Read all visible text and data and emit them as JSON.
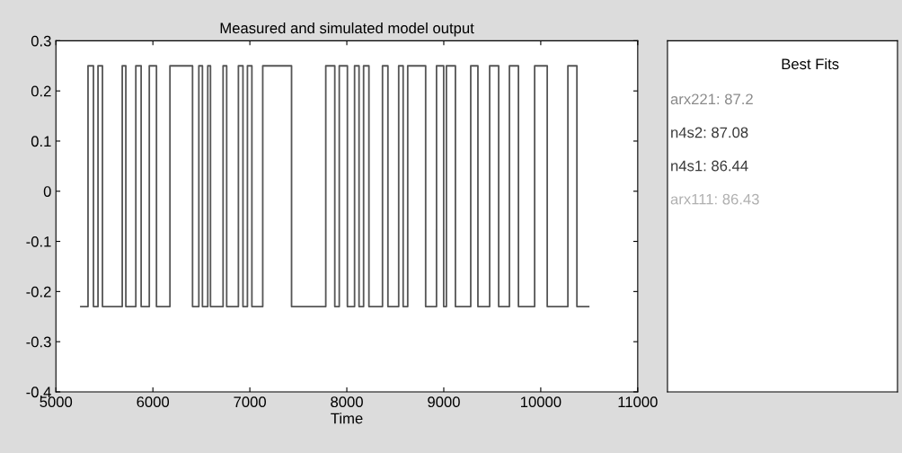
{
  "chart_data": [
    {
      "type": "line",
      "title": "Measured and simulated model output",
      "xlabel": "Time",
      "xlim": [
        5000,
        11000
      ],
      "xticks": [
        5000,
        6000,
        7000,
        8000,
        9000,
        10000,
        11000
      ],
      "ylim": [
        -0.4,
        0.3
      ],
      "yticks": [
        -0.4,
        -0.3,
        -0.2,
        -0.1,
        0,
        0.1,
        0.2,
        0.3
      ],
      "series": [
        {
          "color": "#555555",
          "x": [
            5257,
            5331,
            5331,
            5387,
            5387,
            5434,
            5434,
            5480,
            5480,
            5684,
            5684,
            5721,
            5721,
            5824,
            5824,
            5879,
            5879,
            5963,
            5963,
            6037,
            6037,
            6176,
            6176,
            6409,
            6409,
            6474,
            6474,
            6511,
            6511,
            6566,
            6566,
            6594,
            6594,
            6724,
            6724,
            6761,
            6761,
            6882,
            6882,
            6929,
            6929,
            6975,
            6975,
            7021,
            7021,
            7133,
            7133,
            7430,
            7430,
            7783,
            7783,
            7876,
            7876,
            7922,
            7922,
            8006,
            8006,
            8080,
            8080,
            8126,
            8126,
            8173,
            8173,
            8228,
            8228,
            8368,
            8368,
            8424,
            8424,
            8535,
            8535,
            8581,
            8581,
            8628,
            8628,
            8813,
            8813,
            8925,
            8925,
            8999,
            8999,
            9027,
            9027,
            9120,
            9120,
            9278,
            9278,
            9352,
            9352,
            9473,
            9473,
            9566,
            9566,
            9677,
            9677,
            9770,
            9770,
            9937,
            9937,
            10067,
            10067,
            10280,
            10280,
            10373,
            10373,
            10494
          ],
          "values": [
            -0.23,
            -0.23,
            0.25,
            0.25,
            -0.23,
            -0.23,
            0.25,
            0.25,
            -0.23,
            -0.23,
            0.25,
            0.25,
            -0.23,
            -0.23,
            0.25,
            0.25,
            -0.23,
            -0.23,
            0.25,
            0.25,
            -0.23,
            -0.23,
            0.25,
            0.25,
            -0.23,
            -0.23,
            0.25,
            0.25,
            -0.23,
            -0.23,
            0.25,
            0.25,
            -0.23,
            -0.23,
            0.25,
            0.25,
            -0.23,
            -0.23,
            0.25,
            0.25,
            -0.23,
            -0.23,
            0.25,
            0.25,
            -0.23,
            -0.23,
            0.25,
            0.25,
            -0.23,
            -0.23,
            0.25,
            0.25,
            -0.23,
            -0.23,
            0.25,
            0.25,
            -0.23,
            -0.23,
            0.25,
            0.25,
            -0.23,
            -0.23,
            0.25,
            0.25,
            -0.23,
            -0.23,
            0.25,
            0.25,
            -0.23,
            -0.23,
            0.25,
            0.25,
            -0.23,
            -0.23,
            0.25,
            0.25,
            -0.23,
            -0.23,
            0.25,
            0.25,
            -0.23,
            -0.23,
            0.25,
            0.25,
            -0.23,
            -0.23,
            0.25,
            0.25,
            -0.23,
            -0.23,
            0.25,
            0.25,
            -0.23,
            -0.23,
            0.25,
            0.25,
            -0.23,
            -0.23,
            0.25,
            0.25,
            -0.23,
            -0.23,
            0.25,
            0.25,
            -0.23,
            -0.23
          ]
        }
      ]
    },
    {
      "type": "other",
      "title": "Best Fits",
      "annotations": [
        "arx221: 87.2",
        "n4s2: 87.08",
        "n4s1: 86.44",
        "arx111: 86.43"
      ],
      "colors": [
        "#8a8a8a",
        "#3a3a3a",
        "#3a3a3a",
        "#b0b0b0"
      ]
    }
  ]
}
